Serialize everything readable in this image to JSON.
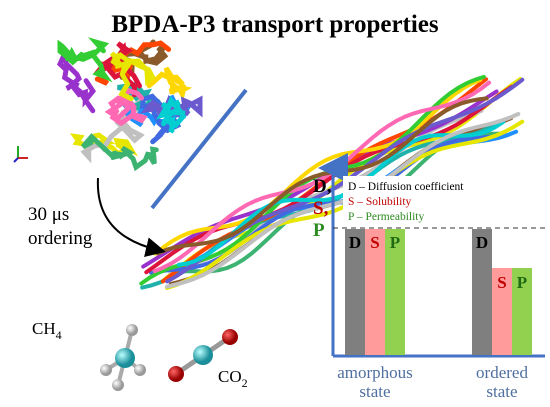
{
  "title": "BPDA-P3 transport properties",
  "annotation": {
    "line1": "30 μs",
    "line2": "ordering"
  },
  "chart": {
    "axis_label": [
      "D,",
      "S,",
      "P"
    ],
    "legend": [
      "D – Diffusion coefficient",
      "S – Solubility",
      "P – Permeability"
    ],
    "groups": [
      {
        "label": [
          "amorphous",
          "state"
        ],
        "bars": [
          "D",
          "S",
          "P"
        ]
      },
      {
        "label": [
          "ordered",
          "state"
        ],
        "bars": [
          "D",
          "S",
          "P"
        ]
      }
    ]
  },
  "molecules": [
    {
      "formula": "CH",
      "subscript": "4"
    },
    {
      "formula": "CO",
      "subscript": "2"
    }
  ]
}
